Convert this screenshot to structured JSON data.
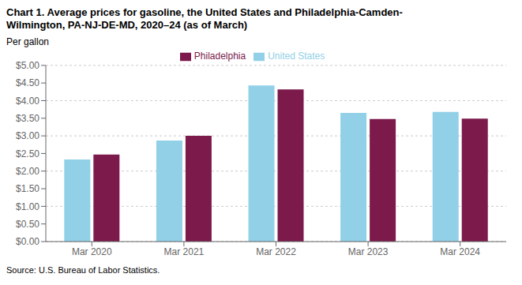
{
  "chart_data": {
    "type": "bar",
    "title": "Chart 1. Average prices for gasoline, the United States and Philadelphia-Camden-\nWilmington, PA-NJ-DE-MD, 2020–24 (as of March)",
    "ylabel": "Per gallon",
    "source": "Source: U.S. Bureau of Labor Statistics.",
    "categories": [
      "Mar 2020",
      "Mar 2021",
      "Mar 2022",
      "Mar 2023",
      "Mar 2024"
    ],
    "series": [
      {
        "name": "United States",
        "color": "#92d0e8",
        "values": [
          2.33,
          2.87,
          4.43,
          3.65,
          3.68
        ]
      },
      {
        "name": "Philadelphia",
        "color": "#7b1a4b",
        "values": [
          2.47,
          3.0,
          4.32,
          3.48,
          3.49
        ]
      }
    ],
    "ylim": [
      0,
      5.0
    ],
    "yticks": [
      {
        "value": 0.0,
        "label": "$0.00"
      },
      {
        "value": 0.5,
        "label": "$0.50"
      },
      {
        "value": 1.0,
        "label": "$1.00"
      },
      {
        "value": 1.5,
        "label": "$1.50"
      },
      {
        "value": 2.0,
        "label": "$2.00"
      },
      {
        "value": 2.5,
        "label": "$2.50"
      },
      {
        "value": 3.0,
        "label": "$3.00"
      },
      {
        "value": 3.5,
        "label": "$3.50"
      },
      {
        "value": 4.0,
        "label": "$4.00"
      },
      {
        "value": 4.5,
        "label": "$4.50"
      },
      {
        "value": 5.0,
        "label": "$5.00"
      }
    ],
    "grid": true,
    "legend": "top"
  }
}
